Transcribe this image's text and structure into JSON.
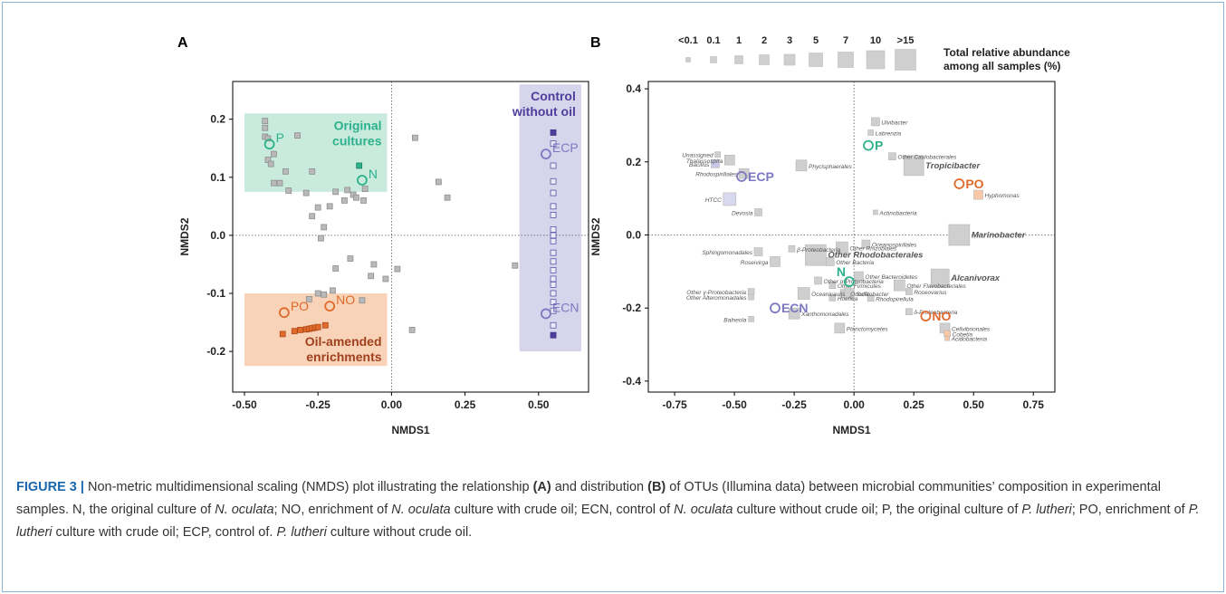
{
  "colors": {
    "grey": "#b9b9b9",
    "grey_dark": "#8f8f8f",
    "green": "#2db18a",
    "green_box": "#c8ebde",
    "orange": "#e06a2c",
    "orange_box": "#f8d3b8",
    "orange_dark": "#a0401d",
    "purple": "#7e78c2",
    "purple_box": "#d6d5eb",
    "purple_dark": "#4e3f9e",
    "blue_label": "#7d85c6",
    "frame": "#8fb2d4",
    "caption_label": "#1a66ad"
  },
  "chart_data": [
    {
      "panel": "A",
      "type": "scatter",
      "xlabel": "NMDS1",
      "ylabel": "NMDS2",
      "xlim": [
        -0.54,
        0.67
      ],
      "ylim": [
        -0.27,
        0.265
      ],
      "xticks": [
        "-0.50",
        "-0.25",
        "0.00",
        "0.25",
        "0.50"
      ],
      "yticks": [
        "0.2",
        "0.1",
        "0.0",
        "-0.1",
        "-0.2"
      ],
      "xtick_values": [
        -0.5,
        -0.25,
        0,
        0.25,
        0.5
      ],
      "ytick_values": [
        0.2,
        0.1,
        0,
        -0.1,
        -0.2
      ],
      "regions": [
        {
          "name": "Original cultures",
          "lines": [
            "Original",
            "cultures"
          ],
          "x": [
            -0.5,
            -0.015
          ],
          "y": [
            0.075,
            0.21
          ],
          "fill": "#c8ebde",
          "text": "#2db18a",
          "label_pos": "top-right"
        },
        {
          "name": "Oil-amended enrichments",
          "lines": [
            "Oil-amended",
            "enrichments"
          ],
          "x": [
            -0.5,
            -0.015
          ],
          "y": [
            -0.225,
            -0.1
          ],
          "fill": "#f8d3b8",
          "text": "#a0401d",
          "label_pos": "bottom-right"
        },
        {
          "name": "Control without oil",
          "lines": [
            "Control",
            "without oil"
          ],
          "x": [
            0.435,
            0.645
          ],
          "y": [
            -0.2,
            0.26
          ],
          "fill": "#d6d5eb",
          "text": "#4e3f9e",
          "label_pos": "top-right"
        }
      ],
      "groups": [
        {
          "name": "grey",
          "color": "#b9b9b9",
          "edge": "#8f8f8f",
          "filled": true,
          "points": [
            [
              -0.43,
              0.197
            ],
            [
              -0.43,
              0.185
            ],
            [
              -0.43,
              0.17
            ],
            [
              -0.42,
              0.167
            ],
            [
              -0.32,
              0.172
            ],
            [
              -0.4,
              0.14
            ],
            [
              -0.42,
              0.13
            ],
            [
              -0.41,
              0.123
            ],
            [
              -0.36,
              0.11
            ],
            [
              -0.27,
              0.11
            ],
            [
              -0.4,
              0.09
            ],
            [
              -0.38,
              0.09
            ],
            [
              -0.35,
              0.077
            ],
            [
              -0.29,
              0.073
            ],
            [
              -0.19,
              0.075
            ],
            [
              -0.15,
              0.078
            ],
            [
              -0.13,
              0.07
            ],
            [
              -0.12,
              0.065
            ],
            [
              -0.16,
              0.06
            ],
            [
              -0.21,
              0.05
            ],
            [
              -0.25,
              0.048
            ],
            [
              -0.27,
              0.033
            ],
            [
              -0.09,
              0.08
            ],
            [
              -0.095,
              0.06
            ],
            [
              -0.23,
              0.014
            ],
            [
              -0.24,
              -0.005
            ],
            [
              -0.19,
              -0.057
            ],
            [
              -0.14,
              -0.04
            ],
            [
              -0.06,
              -0.05
            ],
            [
              -0.07,
              -0.07
            ],
            [
              -0.02,
              -0.075
            ],
            [
              -0.2,
              -0.095
            ],
            [
              -0.23,
              -0.102
            ],
            [
              -0.25,
              -0.1
            ],
            [
              -0.28,
              -0.11
            ],
            [
              -0.1,
              -0.112
            ],
            [
              0.02,
              -0.058
            ],
            [
              0.07,
              -0.163
            ],
            [
              0.08,
              0.168
            ],
            [
              0.16,
              0.092
            ],
            [
              0.19,
              0.065
            ],
            [
              0.42,
              -0.052
            ]
          ]
        },
        {
          "name": "green",
          "color": "#2db18a",
          "edge": "#1e8060",
          "filled": true,
          "points": [
            [
              -0.11,
              0.12
            ]
          ]
        },
        {
          "name": "orange",
          "color": "#e06a2c",
          "edge": "#b04a15",
          "filled": true,
          "points": [
            [
              -0.37,
              -0.17
            ],
            [
              -0.33,
              -0.165
            ],
            [
              -0.31,
              -0.163
            ],
            [
              -0.29,
              -0.162
            ],
            [
              -0.28,
              -0.161
            ],
            [
              -0.27,
              -0.16
            ],
            [
              -0.26,
              -0.159
            ],
            [
              -0.25,
              -0.158
            ],
            [
              -0.225,
              -0.155
            ]
          ]
        },
        {
          "name": "purple",
          "color": "#7e78c2",
          "edge": "#5a53a6",
          "filled": false,
          "points": [
            [
              0.55,
              0.158
            ],
            [
              0.55,
              0.12
            ],
            [
              0.55,
              0.093
            ],
            [
              0.55,
              0.073
            ],
            [
              0.55,
              0.05
            ],
            [
              0.55,
              0.035
            ],
            [
              0.55,
              0.01
            ],
            [
              0.55,
              0.0
            ],
            [
              0.55,
              -0.01
            ],
            [
              0.55,
              -0.03
            ],
            [
              0.55,
              -0.045
            ],
            [
              0.55,
              -0.06
            ],
            [
              0.55,
              -0.075
            ],
            [
              0.55,
              -0.085
            ],
            [
              0.55,
              -0.1
            ],
            [
              0.55,
              -0.115
            ],
            [
              0.55,
              -0.13
            ],
            [
              0.55,
              -0.155
            ]
          ]
        },
        {
          "name": "purple-filled",
          "color": "#4e3f9e",
          "edge": "#3b2e80",
          "filled": true,
          "points": [
            [
              0.55,
              0.177
            ],
            [
              0.55,
              -0.172
            ]
          ]
        }
      ],
      "centroids": [
        {
          "label": "P",
          "x": -0.415,
          "y": 0.157,
          "color": "#2db18a",
          "label_side": "right"
        },
        {
          "label": "N",
          "x": -0.1,
          "y": 0.095,
          "color": "#2db18a",
          "label_side": "right"
        },
        {
          "label": "PO",
          "x": -0.365,
          "y": -0.133,
          "color": "#e06a2c",
          "label_side": "right"
        },
        {
          "label": "NO",
          "x": -0.21,
          "y": -0.122,
          "color": "#e06a2c",
          "label_side": "right"
        },
        {
          "label": "ECP",
          "x": 0.525,
          "y": 0.14,
          "color": "#7e78c2",
          "label_side": "right"
        },
        {
          "label": "ECN",
          "x": 0.525,
          "y": -0.135,
          "color": "#7e78c2",
          "label_side": "right"
        }
      ]
    },
    {
      "panel": "B",
      "type": "scatter",
      "xlabel": "NMDS1",
      "ylabel": "NMDS2",
      "xlim": [
        -0.86,
        0.84
      ],
      "ylim": [
        -0.43,
        0.42
      ],
      "xticks": [
        "-0.75",
        "-0.50",
        "-0.25",
        "0.00",
        "0.25",
        "0.50",
        "0.75"
      ],
      "yticks": [
        "0.4",
        "0.2",
        "0.0",
        "-0.2",
        "-0.4"
      ],
      "xtick_values": [
        -0.75,
        -0.5,
        -0.25,
        0,
        0.25,
        0.5,
        0.75
      ],
      "ytick_values": [
        0.4,
        0.2,
        0,
        -0.2,
        -0.4
      ],
      "size_legend": {
        "title_lines": [
          "Total relative abundance",
          "among all samples (%)"
        ],
        "labels": [
          "<0.1",
          "0.1",
          "1",
          "2",
          "3",
          "5",
          "7",
          "10",
          ">15"
        ],
        "sizes": [
          5,
          7,
          9,
          11,
          12,
          15,
          17,
          20,
          23
        ]
      },
      "otus": [
        {
          "label": "Ulvibacter",
          "x": 0.09,
          "y": 0.31,
          "s": 9
        },
        {
          "label": "Labrenzia",
          "x": 0.07,
          "y": 0.28,
          "s": 6
        },
        {
          "label": "Other Caulobacterales",
          "x": 0.16,
          "y": 0.215,
          "s": 8
        },
        {
          "label": "Tropicibacter",
          "x": 0.25,
          "y": 0.19,
          "s": 22,
          "big": true
        },
        {
          "label": "Hyphomonas",
          "x": 0.52,
          "y": 0.11,
          "s": 10,
          "color": "#f8c8a8"
        },
        {
          "label": "Actinobacteria",
          "x": 0.09,
          "y": 0.062,
          "s": 5
        },
        {
          "label": "Unassigned",
          "x": -0.57,
          "y": 0.22,
          "s": 6
        },
        {
          "label": "Thalassospira",
          "x": -0.52,
          "y": 0.205,
          "s": 11
        },
        {
          "label": "Bacillus",
          "x": -0.58,
          "y": 0.195,
          "s": 9,
          "color": "#c8c9ea"
        },
        {
          "label": "Phycisphaerales",
          "x": -0.22,
          "y": 0.19,
          "s": 12
        },
        {
          "label": "Rhodospirillales",
          "x": -0.46,
          "y": 0.168,
          "s": 11
        },
        {
          "label": "HTCC",
          "x": -0.52,
          "y": 0.098,
          "s": 14,
          "color": "#d8d9ee"
        },
        {
          "label": "Devosia",
          "x": -0.4,
          "y": 0.062,
          "s": 8
        },
        {
          "label": "Marinobacter",
          "x": 0.44,
          "y": 0.0,
          "s": 23,
          "big": true
        },
        {
          "label": "Oceanospirillales",
          "x": 0.05,
          "y": -0.025,
          "s": 9
        },
        {
          "label": "β-Proteobacteria",
          "x": -0.26,
          "y": -0.038,
          "s": 7
        },
        {
          "label": "Other Rhizobiales",
          "x": -0.05,
          "y": -0.035,
          "s": 13
        },
        {
          "label": "Sphingomonadales",
          "x": -0.4,
          "y": -0.046,
          "s": 9
        },
        {
          "label": "Other Rhodobacterales",
          "x": -0.16,
          "y": -0.055,
          "s": 23,
          "big": true
        },
        {
          "label": "Roseivirga",
          "x": -0.33,
          "y": -0.073,
          "s": 11
        },
        {
          "label": "Other Bacteria",
          "x": -0.1,
          "y": -0.073,
          "s": 9
        },
        {
          "label": "Other Bacteroidetes",
          "x": 0.02,
          "y": -0.113,
          "s": 10
        },
        {
          "label": "Alcanivorax",
          "x": 0.36,
          "y": -0.118,
          "s": 20,
          "big": true
        },
        {
          "label": "Other α-Proteobacteria",
          "x": -0.15,
          "y": -0.125,
          "s": 8
        },
        {
          "label": "Other Flavobacteriales",
          "x": 0.19,
          "y": -0.138,
          "s": 12
        },
        {
          "label": "Other Firmicutes",
          "x": -0.09,
          "y": -0.138,
          "s": 7
        },
        {
          "label": "Oceanicaulis",
          "x": -0.21,
          "y": -0.16,
          "s": 13
        },
        {
          "label": "Roseovarius",
          "x": 0.23,
          "y": -0.155,
          "s": 7
        },
        {
          "label": "Other γ-Proteobacteria",
          "x": -0.43,
          "y": -0.155,
          "s": 7
        },
        {
          "label": "Other Alteromonadales",
          "x": -0.43,
          "y": -0.17,
          "s": 6
        },
        {
          "label": "Oricola",
          "x": -0.04,
          "y": -0.16,
          "s": 9
        },
        {
          "label": "Sulfitobacter",
          "x": -0.02,
          "y": -0.16,
          "s": 11
        },
        {
          "label": "Hoeflea",
          "x": -0.09,
          "y": -0.172,
          "s": 7
        },
        {
          "label": "Rhodopirellula",
          "x": 0.07,
          "y": -0.173,
          "s": 7
        },
        {
          "label": "δ-Proteobacteria",
          "x": 0.23,
          "y": -0.21,
          "s": 7
        },
        {
          "label": "Xanthomonadales",
          "x": -0.25,
          "y": -0.215,
          "s": 12
        },
        {
          "label": "Balneola",
          "x": -0.43,
          "y": -0.23,
          "s": 6
        },
        {
          "label": "Planctomycetes",
          "x": -0.06,
          "y": -0.255,
          "s": 11
        },
        {
          "label": "Cellvibrionales",
          "x": 0.38,
          "y": -0.255,
          "s": 11
        },
        {
          "label": "Cobetia",
          "x": 0.39,
          "y": -0.27,
          "s": 7,
          "color": "#f8c8a8"
        },
        {
          "label": "Acidobacteria",
          "x": 0.39,
          "y": -0.283,
          "s": 5,
          "color": "#f8c8a8"
        }
      ],
      "centroids": [
        {
          "label": "P",
          "x": 0.06,
          "y": 0.245,
          "color": "#2db18a"
        },
        {
          "label": "ECP",
          "x": -0.47,
          "y": 0.16,
          "color": "#7e78c2"
        },
        {
          "label": "PO",
          "x": 0.44,
          "y": 0.14,
          "color": "#e06a2c"
        },
        {
          "label": "N",
          "x": -0.02,
          "y": -0.128,
          "color": "#2db18a"
        },
        {
          "label": "ECN",
          "x": -0.33,
          "y": -0.2,
          "color": "#7e78c2"
        },
        {
          "label": "NO",
          "x": 0.3,
          "y": -0.222,
          "color": "#e06a2c"
        }
      ]
    }
  ],
  "caption": {
    "label": "FIGURE 3 |",
    "parts": [
      " Non-metric multidimensional scaling (NMDS) plot illustrating the relationship ",
      "(A)",
      " and distribution ",
      "(B)",
      " of OTUs (Illumina data) between microbial communities’ composition in experimental samples. N, the original culture of ",
      "N. oculata",
      "; NO, enrichment of ",
      "N. oculata",
      " culture with crude oil; ECN, control of ",
      "N. oculata",
      " culture without crude oil; P, the original culture of ",
      "P. lutheri",
      "; PO, enrichment of ",
      "P. lutheri",
      " culture with crude oil; ECP, control of. ",
      "P. lutheri",
      " culture without crude oil."
    ]
  }
}
